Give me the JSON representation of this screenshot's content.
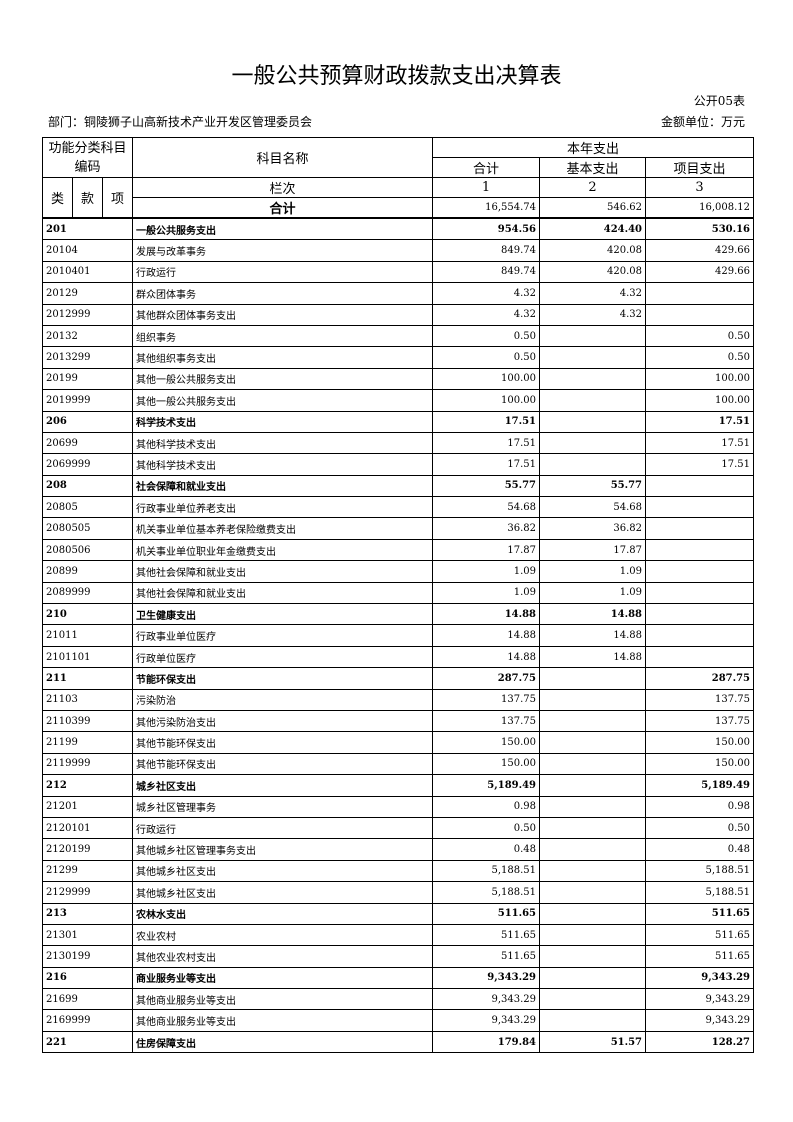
{
  "title": "一般公共预算财政拨款支出决算表",
  "form_no": "公开05表",
  "department": "部门：铜陵狮子山高新技术产业开发区管理委员会",
  "unit": "金额单位：万元",
  "header": {
    "code": "功能分类科目编码",
    "name": "科目名称",
    "current_year": "本年支出",
    "total": "合计",
    "basic": "基本支出",
    "project": "项目支出",
    "lei": "类",
    "kuan": "款",
    "xiang": "项",
    "column_no": "栏次",
    "col1": "1",
    "col2": "2",
    "col3": "3"
  },
  "total_row": {
    "label": "合计",
    "total": "16,554.74",
    "basic": "546.62",
    "project": "16,008.12"
  },
  "table": {
    "rows": [
      [
        "201",
        "一般公共服务支出",
        "954.56",
        "424.40",
        "530.16"
      ],
      [
        "20104",
        "发展与改革事务",
        "849.74",
        "420.08",
        "429.66"
      ],
      [
        "2010401",
        "行政运行",
        "849.74",
        "420.08",
        "429.66"
      ],
      [
        "20129",
        "群众团体事务",
        "4.32",
        "4.32",
        null
      ],
      [
        "2012999",
        "其他群众团体事务支出",
        "4.32",
        "4.32",
        null
      ],
      [
        "20132",
        "组织事务",
        "0.50",
        null,
        "0.50"
      ],
      [
        "2013299",
        "其他组织事务支出",
        "0.50",
        null,
        "0.50"
      ],
      [
        "20199",
        "其他一般公共服务支出",
        "100.00",
        null,
        "100.00"
      ],
      [
        "2019999",
        "其他一般公共服务支出",
        "100.00",
        null,
        "100.00"
      ],
      [
        "206",
        "科学技术支出",
        "17.51",
        null,
        "17.51"
      ],
      [
        "20699",
        "其他科学技术支出",
        "17.51",
        null,
        "17.51"
      ],
      [
        "2069999",
        "其他科学技术支出",
        "17.51",
        null,
        "17.51"
      ],
      [
        "208",
        "社会保障和就业支出",
        "55.77",
        "55.77",
        null
      ],
      [
        "20805",
        "行政事业单位养老支出",
        "54.68",
        "54.68",
        null
      ],
      [
        "2080505",
        "机关事业单位基本养老保险缴费支出",
        "36.82",
        "36.82",
        null
      ],
      [
        "2080506",
        "机关事业单位职业年金缴费支出",
        "17.87",
        "17.87",
        null
      ],
      [
        "20899",
        "其他社会保障和就业支出",
        "1.09",
        "1.09",
        null
      ],
      [
        "2089999",
        "其他社会保障和就业支出",
        "1.09",
        "1.09",
        null
      ],
      [
        "210",
        "卫生健康支出",
        "14.88",
        "14.88",
        null
      ],
      [
        "21011",
        "行政事业单位医疗",
        "14.88",
        "14.88",
        null
      ],
      [
        "2101101",
        "行政单位医疗",
        "14.88",
        "14.88",
        null
      ],
      [
        "211",
        "节能环保支出",
        "287.75",
        null,
        "287.75"
      ],
      [
        "21103",
        "污染防治",
        "137.75",
        null,
        "137.75"
      ],
      [
        "2110399",
        "其他污染防治支出",
        "137.75",
        null,
        "137.75"
      ],
      [
        "21199",
        "其他节能环保支出",
        "150.00",
        null,
        "150.00"
      ],
      [
        "2119999",
        "其他节能环保支出",
        "150.00",
        null,
        "150.00"
      ],
      [
        "212",
        "城乡社区支出",
        "5,189.49",
        null,
        "5,189.49"
      ],
      [
        "21201",
        "城乡社区管理事务",
        "0.98",
        null,
        "0.98"
      ],
      [
        "2120101",
        "行政运行",
        "0.50",
        null,
        "0.50"
      ],
      [
        "2120199",
        "其他城乡社区管理事务支出",
        "0.48",
        null,
        "0.48"
      ],
      [
        "21299",
        "其他城乡社区支出",
        "5,188.51",
        null,
        "5,188.51"
      ],
      [
        "2129999",
        "其他城乡社区支出",
        "5,188.51",
        null,
        "5,188.51"
      ],
      [
        "213",
        "农林水支出",
        "511.65",
        null,
        "511.65"
      ],
      [
        "21301",
        "农业农村",
        "511.65",
        null,
        "511.65"
      ],
      [
        "2130199",
        "其他农业农村支出",
        "511.65",
        null,
        "511.65"
      ],
      [
        "216",
        "商业服务业等支出",
        "9,343.29",
        null,
        "9,343.29"
      ],
      [
        "21699",
        "其他商业服务业等支出",
        "9,343.29",
        null,
        "9,343.29"
      ],
      [
        "2169999",
        "其他商业服务业等支出",
        "9,343.29",
        null,
        "9,343.29"
      ],
      [
        "221",
        "住房保障支出",
        "179.84",
        "51.57",
        "128.27"
      ]
    ]
  }
}
